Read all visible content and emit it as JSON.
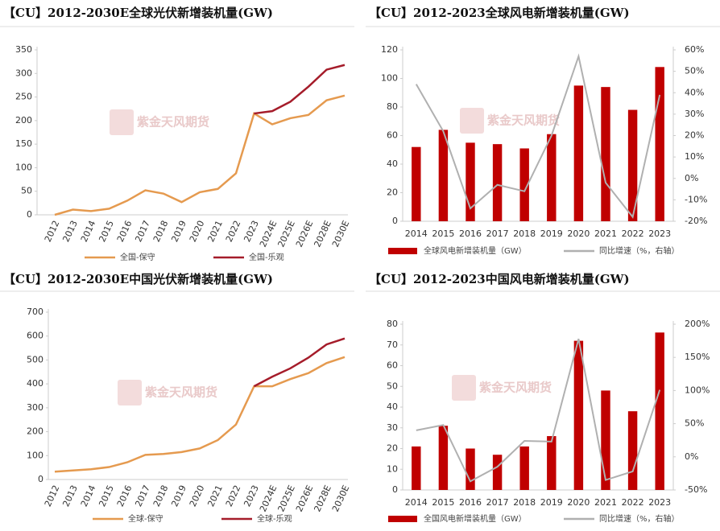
{
  "chart_data": [
    {
      "type": "line",
      "title": "【CU】2012-2030E全球光伏新增装机量(GW)",
      "watermark": "紫金天风期货",
      "categories": [
        "2012",
        "2013",
        "2014",
        "2015",
        "2016",
        "2017",
        "2018",
        "2019",
        "2020",
        "2021",
        "2022",
        "2023",
        "2024E",
        "2025E",
        "2026E",
        "2028E",
        "2030E"
      ],
      "series": [
        {
          "name": "全国-保守",
          "color": "#e59a4f",
          "values": [
            0,
            11,
            8,
            13,
            30,
            52,
            45,
            27,
            48,
            55,
            88,
            215,
            192,
            205,
            212,
            243,
            253
          ]
        },
        {
          "name": "全国-乐观",
          "color": "#a51c2a",
          "values": [
            null,
            null,
            null,
            null,
            null,
            null,
            null,
            null,
            null,
            null,
            null,
            215,
            220,
            240,
            272,
            308,
            318
          ]
        }
      ],
      "ylim": [
        0,
        350
      ],
      "yticks": [
        0,
        50,
        100,
        150,
        200,
        250,
        300,
        350
      ],
      "grid": false
    },
    {
      "type": "bar",
      "title": "【CU】2012-2023全球风电新增装机量(GW)",
      "watermark": "紫金天风期货",
      "categories": [
        "2014",
        "2015",
        "2016",
        "2017",
        "2018",
        "2019",
        "2020",
        "2021",
        "2022",
        "2023"
      ],
      "series": [
        {
          "name": "全球风电新增装机量（GW）",
          "color": "#c00000",
          "values": [
            52,
            64,
            55,
            54,
            51,
            61,
            95,
            94,
            78,
            108
          ]
        },
        {
          "name": "同比增速（%，右轴）",
          "color": "#b0b0b0",
          "type": "line",
          "axis": "y2",
          "values": [
            44,
            22,
            -14,
            -3,
            -6,
            20,
            57,
            -2,
            -18,
            39
          ]
        }
      ],
      "ylim": [
        0,
        120
      ],
      "yticks": [
        0,
        20,
        40,
        60,
        80,
        100,
        120
      ],
      "y2lim": [
        -20,
        60
      ],
      "y2ticks": [
        {
          "value": -20,
          "label": "-20%"
        },
        {
          "value": -10,
          "label": "-10%"
        },
        {
          "value": 0,
          "label": "0%"
        },
        {
          "value": 10,
          "label": "10%"
        },
        {
          "value": 20,
          "label": "20%"
        },
        {
          "value": 30,
          "label": "30%"
        },
        {
          "value": 40,
          "label": "40%"
        },
        {
          "value": 50,
          "label": "50%"
        },
        {
          "value": 60,
          "label": "60%"
        }
      ],
      "grid": false
    },
    {
      "type": "line",
      "title": "【CU】2012-2030E中国光伏新增装机量(GW)",
      "watermark": "紫金天风期货",
      "categories": [
        "2012",
        "2013",
        "2014",
        "2015",
        "2016",
        "2017",
        "2018",
        "2019",
        "2020",
        "2021",
        "2022",
        "2023",
        "2024E",
        "2025E",
        "2026E",
        "2028E",
        "2030E"
      ],
      "series": [
        {
          "name": "全球-保守",
          "color": "#e59a4f",
          "values": [
            33,
            38,
            43,
            52,
            72,
            103,
            107,
            115,
            130,
            165,
            230,
            390,
            390,
            420,
            445,
            487,
            512
          ]
        },
        {
          "name": "全球-乐观",
          "color": "#a51c2a",
          "values": [
            null,
            null,
            null,
            null,
            null,
            null,
            null,
            null,
            null,
            null,
            null,
            390,
            430,
            465,
            510,
            565,
            590
          ]
        }
      ],
      "ylim": [
        0,
        700
      ],
      "yticks": [
        0,
        100,
        200,
        300,
        400,
        500,
        600,
        700
      ],
      "grid": false
    },
    {
      "type": "bar",
      "title": "【CU】2012-2023中国风电新增装机量(GW)",
      "watermark": "紫金天风期货",
      "categories": [
        "2014",
        "2015",
        "2016",
        "2017",
        "2018",
        "2019",
        "2020",
        "2021",
        "2022",
        "2023"
      ],
      "series": [
        {
          "name": "全国风电新增装机量（GW）",
          "color": "#c00000",
          "values": [
            21,
            31,
            20,
            17,
            21,
            26,
            72,
            48,
            38,
            76
          ]
        },
        {
          "name": "同比增速（%，右轴）",
          "color": "#b0b0b0",
          "type": "line",
          "axis": "y2",
          "values": [
            40,
            48,
            -37,
            -15,
            24,
            23,
            178,
            -35,
            -22,
            101
          ]
        }
      ],
      "ylim": [
        0,
        80
      ],
      "yticks": [
        0,
        10,
        20,
        30,
        40,
        50,
        60,
        70,
        80
      ],
      "y2lim": [
        -50,
        200
      ],
      "y2ticks": [
        {
          "value": -50,
          "label": "-50%"
        },
        {
          "value": 0,
          "label": "0%"
        },
        {
          "value": 50,
          "label": "50%"
        },
        {
          "value": 100,
          "label": "100%"
        },
        {
          "value": 150,
          "label": "150%"
        },
        {
          "value": 200,
          "label": "200%"
        }
      ],
      "grid": false
    }
  ]
}
